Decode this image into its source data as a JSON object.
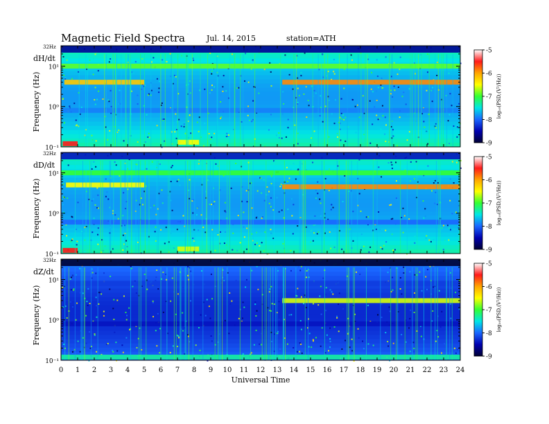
{
  "header": {
    "title": "Magnetic  Field  Spectra",
    "date": "Jul.  14,  2015",
    "station": "station=ATH"
  },
  "xaxis_label": "Universal Time",
  "x_ticks": [
    "0",
    "1",
    "2",
    "3",
    "4",
    "5",
    "6",
    "7",
    "8",
    "9",
    "10",
    "11",
    "12",
    "13",
    "14",
    "15",
    "16",
    "17",
    "18",
    "19",
    "20",
    "21",
    "22",
    "23",
    "24"
  ],
  "colorbar": {
    "label": "log₁₀(PSD,(V²/Hz))",
    "ticks": [
      "-5",
      "-6",
      "-7",
      "-8",
      "-9"
    ],
    "colors": [
      "#ffffff",
      "#ff1a1a",
      "#ffa500",
      "#ffff00",
      "#33ff33",
      "#00e6e6",
      "#1a66ff",
      "#0000b0",
      "#000033"
    ]
  },
  "chart_data": [
    {
      "type": "heatmap",
      "panel_label": "dH/dt",
      "ylabel": "Frequency (Hz)",
      "y_top_label": "32Hz",
      "y_ticks": [
        "10¹",
        "10⁰",
        "10⁻¹"
      ],
      "x_range_hours": [
        0,
        24
      ],
      "y_range_hz": [
        0.1,
        32
      ],
      "z_range_log10_psd": [
        -9,
        -5
      ],
      "bands": [
        {
          "from_hour": 0,
          "to_hour": 24,
          "freq_hz": 30,
          "log10_psd": -8.6
        },
        {
          "from_hour": 0,
          "to_hour": 24,
          "freq_hz": 10,
          "log10_psd": -6.9
        },
        {
          "from_hour": 0.2,
          "to_hour": 5,
          "freq_hz": 4,
          "log10_psd": -6.2
        },
        {
          "from_hour": 13.3,
          "to_hour": 24,
          "freq_hz": 4,
          "log10_psd": -5.9
        },
        {
          "from_hour": 0,
          "to_hour": 24,
          "freq_hz": 0.8,
          "log10_psd": -7.9
        },
        {
          "from_hour": 0.1,
          "to_hour": 1,
          "freq_hz": 0.12,
          "log10_psd": -5.5
        },
        {
          "from_hour": 7,
          "to_hour": 8.3,
          "freq_hz": 0.13,
          "log10_psd": -6.5
        }
      ]
    },
    {
      "type": "heatmap",
      "panel_label": "dD/dt",
      "ylabel": "Frequency (Hz)",
      "y_top_label": "32Hz",
      "y_ticks": [
        "10¹",
        "10⁰",
        "10⁻¹"
      ],
      "x_range_hours": [
        0,
        24
      ],
      "y_range_hz": [
        0.1,
        32
      ],
      "z_range_log10_psd": [
        -9,
        -5
      ],
      "bands": [
        {
          "from_hour": 0,
          "to_hour": 24,
          "freq_hz": 30,
          "log10_psd": -8.4
        },
        {
          "from_hour": 0,
          "to_hour": 24,
          "freq_hz": 10,
          "log10_psd": -7.0
        },
        {
          "from_hour": 0.3,
          "to_hour": 5,
          "freq_hz": 5,
          "log10_psd": -6.5
        },
        {
          "from_hour": 13.3,
          "to_hour": 24,
          "freq_hz": 4.5,
          "log10_psd": -5.9
        },
        {
          "from_hour": 0,
          "to_hour": 24,
          "freq_hz": 0.6,
          "log10_psd": -8.0
        },
        {
          "from_hour": 0.1,
          "to_hour": 1,
          "freq_hz": 0.12,
          "log10_psd": -5.5
        },
        {
          "from_hour": 7,
          "to_hour": 8.3,
          "freq_hz": 0.13,
          "log10_psd": -6.6
        }
      ]
    },
    {
      "type": "heatmap",
      "panel_label": "dZ/dt",
      "ylabel": "Frequency (Hz)",
      "y_top_label": "32Hz",
      "y_ticks": [
        "10¹",
        "10⁰",
        "10⁻¹"
      ],
      "x_range_hours": [
        0,
        24
      ],
      "y_range_hz": [
        0.1,
        32
      ],
      "z_range_log10_psd": [
        -9,
        -5
      ],
      "bands": [
        {
          "from_hour": 0,
          "to_hour": 24,
          "freq_hz": 28,
          "log10_psd": -9.0
        },
        {
          "from_hour": 0,
          "to_hour": 24,
          "freq_hz": 8,
          "log10_psd": -8.2
        },
        {
          "from_hour": 13.3,
          "to_hour": 24,
          "freq_hz": 3,
          "log10_psd": -6.6
        },
        {
          "from_hour": 0,
          "to_hour": 24,
          "freq_hz": 0.8,
          "log10_psd": -8.4
        },
        {
          "from_hour": 0,
          "to_hour": 24,
          "freq_hz": 0.12,
          "log10_psd": -7.3
        }
      ]
    }
  ]
}
